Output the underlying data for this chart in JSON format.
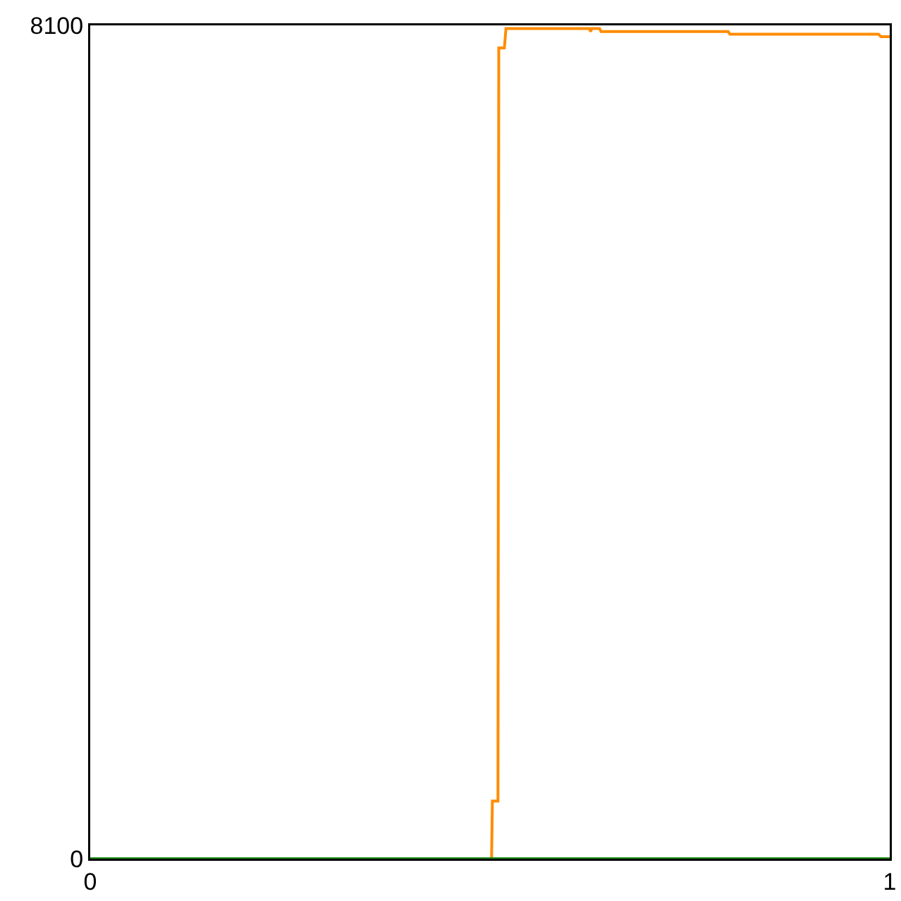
{
  "chart_data": {
    "type": "line",
    "xlim": [
      0,
      1
    ],
    "ylim": [
      0,
      8100
    ],
    "xticks": [
      0,
      1
    ],
    "yticks": [
      0,
      8100
    ],
    "marker": "none",
    "line_style": "solid",
    "series": [
      {
        "color": "#ff8c00",
        "x": [
          0,
          0.502,
          0.503,
          0.51,
          0.511,
          0.518,
          0.52,
          0.624,
          0.626,
          0.627,
          0.637,
          0.639,
          0.798,
          0.8,
          0.986,
          0.989,
          1
        ],
        "values": [
          0,
          0,
          560,
          560,
          7880,
          7880,
          8070,
          8070,
          8040,
          8070,
          8070,
          8040,
          8040,
          8015,
          8015,
          7990,
          7990
        ]
      },
      {
        "color": "#1a8a1a",
        "x": [
          0,
          1
        ],
        "values": [
          0,
          0
        ]
      }
    ]
  }
}
